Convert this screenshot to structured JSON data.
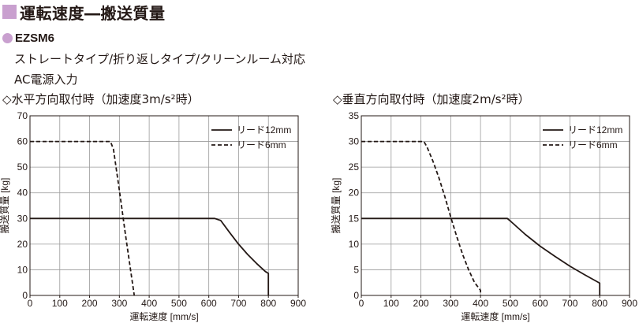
{
  "header": {
    "title": "運転速度―搬送質量"
  },
  "model": {
    "name": "EZSM6"
  },
  "description": {
    "line1": "ストレートタイプ/折り返しタイプ/クリーンルーム対応",
    "line2": "AC電源入力"
  },
  "charts": {
    "left": {
      "condition": "◇水平方向取付時（加速度3m/s²時）"
    },
    "right": {
      "condition": "◇垂直方向取付時（加速度2m/s²時）"
    }
  },
  "colors": {
    "accent": "#c9a0cf",
    "line": "#231815",
    "grid": "#9a9a9a"
  },
  "chart_data": [
    {
      "type": "line",
      "xlabel": "運転速度 [mm/s]",
      "ylabel": "搬送質量 [kg]",
      "xlim": [
        0,
        900
      ],
      "ylim": [
        0,
        70
      ],
      "xticks": [
        0,
        100,
        200,
        300,
        400,
        500,
        600,
        700,
        800,
        900
      ],
      "yticks": [
        0,
        10,
        20,
        30,
        40,
        50,
        60,
        70
      ],
      "grid": true,
      "legend": "top-right",
      "series": [
        {
          "name": "リード12mm",
          "style": "solid",
          "x": [
            0,
            620,
            640,
            670,
            700,
            730,
            760,
            790,
            800,
            800
          ],
          "y": [
            30,
            30,
            29.2,
            24.5,
            20,
            16,
            12.5,
            9.3,
            8.6,
            0
          ]
        },
        {
          "name": "リード6mm",
          "style": "dashed",
          "x": [
            0,
            270,
            280,
            300,
            320,
            340,
            350
          ],
          "y": [
            60,
            60,
            57,
            41,
            24,
            8,
            0
          ]
        }
      ]
    },
    {
      "type": "line",
      "xlabel": "運転速度 [mm/s]",
      "ylabel": "搬送質量 [kg]",
      "xlim": [
        0,
        900
      ],
      "ylim": [
        0,
        35
      ],
      "xticks": [
        0,
        100,
        200,
        300,
        400,
        500,
        600,
        700,
        800,
        900
      ],
      "yticks": [
        0,
        5,
        10,
        15,
        20,
        25,
        30,
        35
      ],
      "grid": true,
      "legend": "top-right",
      "series": [
        {
          "name": "リード12mm",
          "style": "solid",
          "x": [
            0,
            490,
            500,
            550,
            600,
            650,
            700,
            750,
            800,
            800
          ],
          "y": [
            15,
            15,
            14.5,
            11.9,
            9.6,
            7.6,
            5.7,
            4,
            2.4,
            0
          ]
        },
        {
          "name": "リード6mm",
          "style": "dashed",
          "x": [
            0,
            210,
            220,
            240,
            260,
            280,
            300,
            320,
            340,
            360,
            380,
            400,
            400
          ],
          "y": [
            30,
            30,
            29,
            26.2,
            23,
            19.3,
            15.3,
            11.5,
            8,
            5,
            2.5,
            1,
            0
          ]
        }
      ]
    }
  ]
}
